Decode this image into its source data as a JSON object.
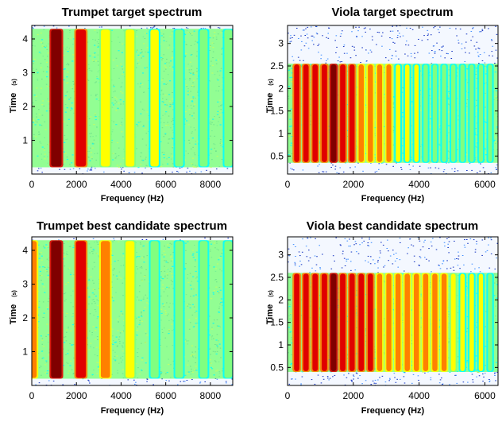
{
  "chart_data": [
    {
      "type": "heatmap",
      "title": "Trumpet target spectrum",
      "xlabel": "Frequency (Hz)",
      "ylabel": "Time",
      "ylabel_unit": "(s)",
      "xlim": [
        0,
        9000
      ],
      "ylim": [
        0,
        4.4
      ],
      "xticks": [
        0,
        2000,
        4000,
        6000,
        8000
      ],
      "yticks": [
        1,
        2,
        3,
        4
      ],
      "active_time": [
        0.2,
        4.3
      ],
      "colormap": [
        "#00008f",
        "#0060ff",
        "#00ffff",
        "#80ff80",
        "#ffff00",
        "#ff8000",
        "#e00000",
        "#800000"
      ],
      "partials": [
        {
          "freq": 1100,
          "level": 1.0
        },
        {
          "freq": 2200,
          "level": 0.92
        },
        {
          "freq": 3300,
          "level": 0.72
        },
        {
          "freq": 4400,
          "level": 0.62
        },
        {
          "freq": 5500,
          "level": 0.55
        },
        {
          "freq": 6600,
          "level": 0.5
        },
        {
          "freq": 7700,
          "level": 0.46
        },
        {
          "freq": 8800,
          "level": 0.44
        }
      ]
    },
    {
      "type": "heatmap",
      "title": "Viola target spectrum",
      "xlabel": "Frequency (Hz)",
      "ylabel": "Time",
      "ylabel_unit": "(s)",
      "xlim": [
        0,
        6400
      ],
      "ylim": [
        0.1,
        3.4
      ],
      "xticks": [
        0,
        2000,
        4000,
        6000
      ],
      "yticks": [
        0.5,
        1,
        1.5,
        2,
        2.5,
        3
      ],
      "active_time": [
        0.35,
        2.55
      ],
      "colormap": [
        "#00008f",
        "#0060ff",
        "#00ffff",
        "#80ff80",
        "#ffff00",
        "#ff8000",
        "#e00000",
        "#800000"
      ],
      "partials": [
        {
          "freq": 280,
          "level": 0.88
        },
        {
          "freq": 560,
          "level": 0.9
        },
        {
          "freq": 840,
          "level": 0.92
        },
        {
          "freq": 1120,
          "level": 0.94
        },
        {
          "freq": 1400,
          "level": 0.97
        },
        {
          "freq": 1680,
          "level": 0.92
        },
        {
          "freq": 1960,
          "level": 0.88
        },
        {
          "freq": 2240,
          "level": 0.85
        },
        {
          "freq": 2520,
          "level": 0.82
        },
        {
          "freq": 2800,
          "level": 0.75
        },
        {
          "freq": 3080,
          "level": 0.74
        },
        {
          "freq": 3360,
          "level": 0.6
        },
        {
          "freq": 3640,
          "level": 0.56
        },
        {
          "freq": 3920,
          "level": 0.52
        },
        {
          "freq": 4200,
          "level": 0.5
        },
        {
          "freq": 4480,
          "level": 0.48
        },
        {
          "freq": 4760,
          "level": 0.5
        },
        {
          "freq": 5040,
          "level": 0.46
        },
        {
          "freq": 5320,
          "level": 0.44
        },
        {
          "freq": 5600,
          "level": 0.42
        },
        {
          "freq": 5880,
          "level": 0.4
        },
        {
          "freq": 6160,
          "level": 0.38
        }
      ]
    },
    {
      "type": "heatmap",
      "title": "Trumpet best candidate spectrum",
      "xlabel": "Frequency (Hz)",
      "ylabel": "Time",
      "ylabel_unit": "(s)",
      "xlim": [
        0,
        9000
      ],
      "ylim": [
        0,
        4.4
      ],
      "xticks": [
        0,
        2000,
        4000,
        6000,
        8000
      ],
      "yticks": [
        1,
        2,
        3,
        4
      ],
      "active_time": [
        0.2,
        4.3
      ],
      "colormap": [
        "#00008f",
        "#0060ff",
        "#00ffff",
        "#80ff80",
        "#ffff00",
        "#ff8000",
        "#e00000",
        "#800000"
      ],
      "partials": [
        {
          "freq": 0,
          "level": 0.85
        },
        {
          "freq": 1100,
          "level": 1.0
        },
        {
          "freq": 2200,
          "level": 0.9
        },
        {
          "freq": 3300,
          "level": 0.74
        },
        {
          "freq": 4400,
          "level": 0.66
        },
        {
          "freq": 5500,
          "level": 0.5
        },
        {
          "freq": 6600,
          "level": 0.46
        },
        {
          "freq": 7700,
          "level": 0.44
        },
        {
          "freq": 8800,
          "level": 0.42
        }
      ]
    },
    {
      "type": "heatmap",
      "title": "Viola best candidate spectrum",
      "xlabel": "Frequency (Hz)",
      "ylabel": "Time",
      "ylabel_unit": "(s)",
      "xlim": [
        0,
        6400
      ],
      "ylim": [
        0.1,
        3.4
      ],
      "xticks": [
        0,
        2000,
        4000,
        6000
      ],
      "yticks": [
        0.5,
        1,
        1.5,
        2,
        2.5,
        3
      ],
      "active_time": [
        0.4,
        2.6
      ],
      "colormap": [
        "#00008f",
        "#0060ff",
        "#00ffff",
        "#80ff80",
        "#ffff00",
        "#ff8000",
        "#e00000",
        "#800000"
      ],
      "partials": [
        {
          "freq": 280,
          "level": 0.92
        },
        {
          "freq": 560,
          "level": 0.93
        },
        {
          "freq": 840,
          "level": 0.94
        },
        {
          "freq": 1120,
          "level": 0.95
        },
        {
          "freq": 1400,
          "level": 0.98
        },
        {
          "freq": 1680,
          "level": 0.95
        },
        {
          "freq": 1960,
          "level": 0.92
        },
        {
          "freq": 2240,
          "level": 0.9
        },
        {
          "freq": 2520,
          "level": 0.88
        },
        {
          "freq": 2800,
          "level": 0.78
        },
        {
          "freq": 3080,
          "level": 0.8
        },
        {
          "freq": 3360,
          "level": 0.82
        },
        {
          "freq": 3640,
          "level": 0.84
        },
        {
          "freq": 3920,
          "level": 0.85
        },
        {
          "freq": 4200,
          "level": 0.84
        },
        {
          "freq": 4480,
          "level": 0.83
        },
        {
          "freq": 4760,
          "level": 0.8
        },
        {
          "freq": 5040,
          "level": 0.62
        },
        {
          "freq": 5320,
          "level": 0.58
        },
        {
          "freq": 5600,
          "level": 0.55
        },
        {
          "freq": 5880,
          "level": 0.52
        },
        {
          "freq": 6160,
          "level": 0.5
        }
      ]
    }
  ]
}
